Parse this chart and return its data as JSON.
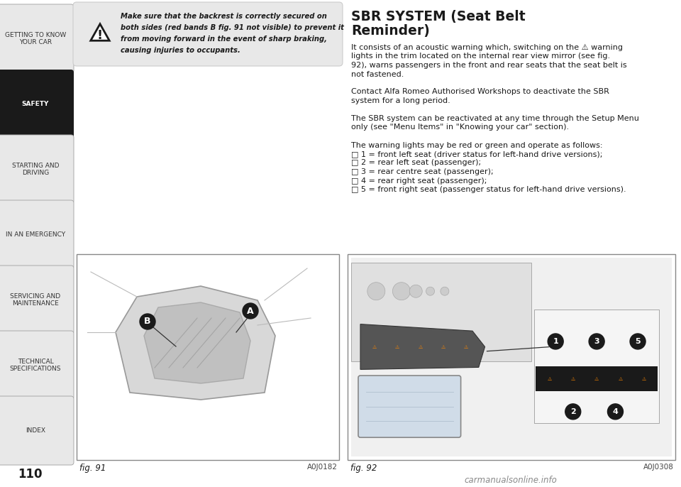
{
  "page_number": "110",
  "background_color": "#ffffff",
  "sidebar_bg": "#e8e8e8",
  "sidebar_active_bg": "#1a1a1a",
  "sidebar_active_text": "#ffffff",
  "sidebar_text_color": "#333333",
  "sidebar_items": [
    "GETTING TO KNOW\nYOUR CAR",
    "SAFETY",
    "STARTING AND\nDRIVING",
    "IN AN EMERGENCY",
    "SERVICING AND\nMAINTENANCE",
    "TECHNICAL\nSPECIFICATIONS",
    "INDEX"
  ],
  "sidebar_active_index": 1,
  "warning_text_line1": "Make sure that the backrest is correctly secured on",
  "warning_text_line2": "both sides (red bands B fig. 91 not visible) to prevent it",
  "warning_text_line3": "from moving forward in the event of sharp braking,",
  "warning_text_line4": "causing injuries to occupants.",
  "section_title_line1": "SBR SYSTEM (Seat Belt",
  "section_title_line2": "Reminder)",
  "body_text": [
    "It consists of an acoustic warning which, switching on the ⚠ warning",
    "lights in the trim located on the internal rear view mirror (see fig.",
    "92), warns passengers in the front and rear seats that the seat belt is",
    "not fastened.",
    "",
    "Contact Alfa Romeo Authorised Workshops to deactivate the SBR",
    "system for a long period.",
    "",
    "The SBR system can be reactivated at any time through the Setup Menu",
    "only (see \"Menu Items\" in \"Knowing your car\" section).",
    "",
    "The warning lights may be red or green and operate as follows:",
    "□ 1 = front left seat (driver status for left-hand drive versions);",
    "□ 2 = rear left seat (passenger);",
    "□ 3 = rear centre seat (passenger);",
    "□ 4 = rear right seat (passenger);",
    "□ 5 = front right seat (passenger status for left-hand drive versions)."
  ],
  "fig91_label": "fig. 91",
  "fig91_code": "A0J0182",
  "fig92_label": "fig. 92",
  "fig92_code": "A0J0308",
  "footer_url": "carmanualsonline.info"
}
